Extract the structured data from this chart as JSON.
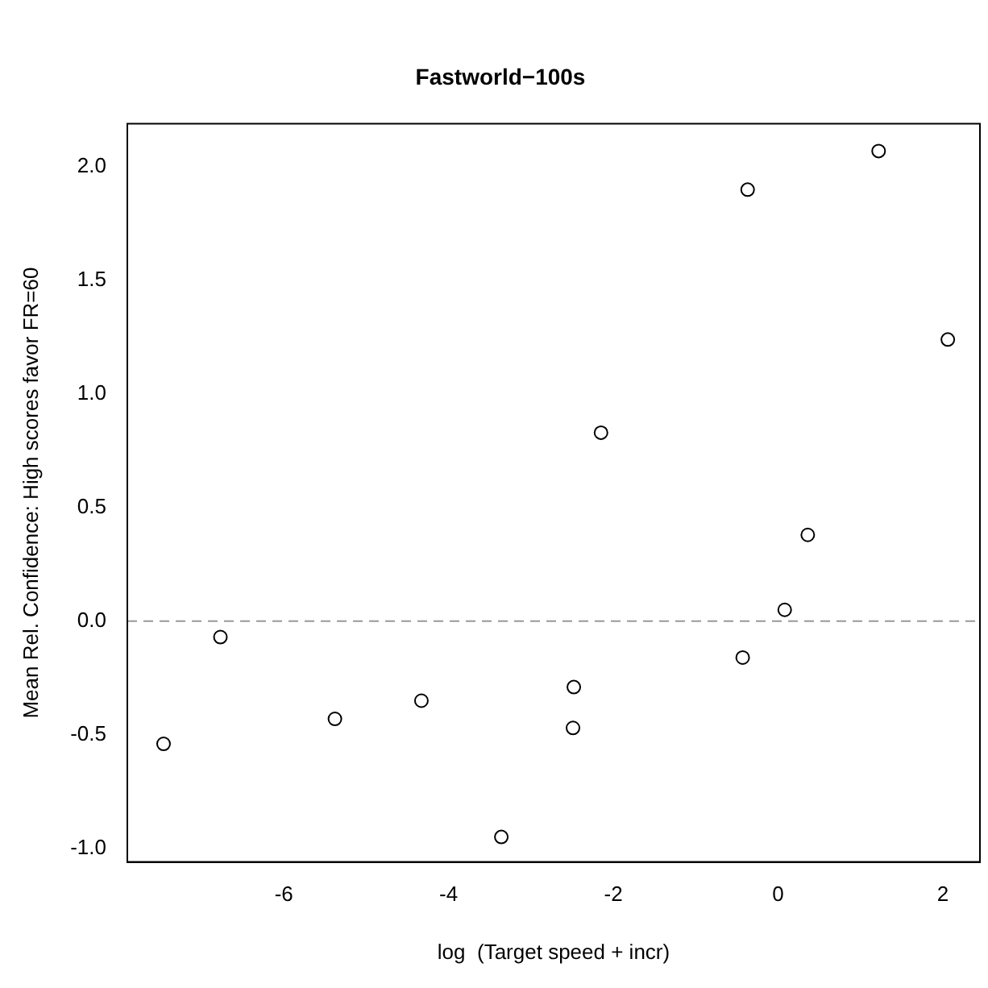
{
  "chart_data": {
    "type": "scatter",
    "title": "Fastworld−100s",
    "xlabel": "log  (Target speed + incr)",
    "ylabel": "Mean Rel. Confidence: High scores favor FR=60",
    "x": [
      -7.46,
      -6.77,
      -5.38,
      -4.33,
      -3.36,
      -2.48,
      -2.49,
      -2.15,
      -0.43,
      -0.37,
      0.08,
      0.36,
      1.22,
      2.06
    ],
    "values": [
      -0.54,
      -0.07,
      -0.43,
      -0.35,
      -0.95,
      -0.29,
      -0.47,
      0.83,
      -0.16,
      1.9,
      0.05,
      0.38,
      2.07,
      1.24
    ],
    "color": "#000000",
    "marker": "circle",
    "xlim": [
      -7.9,
      2.45
    ],
    "ylim": [
      -1.06,
      2.19
    ],
    "xticks": [
      -6,
      -4,
      -2,
      0,
      2
    ],
    "yticks": [
      {
        "value": -1,
        "label": "-1.0"
      },
      {
        "value": -0.5,
        "label": "-0.5"
      },
      {
        "value": 0,
        "label": "0.0"
      },
      {
        "value": 0.5,
        "label": "0.5"
      },
      {
        "value": 1,
        "label": "1.0"
      },
      {
        "value": 1.5,
        "label": "1.5"
      },
      {
        "value": 2,
        "label": "2.0"
      }
    ],
    "ref_lines": [
      {
        "axis": "y",
        "value": 0,
        "color": "#999999",
        "line_style": "dashed"
      }
    ],
    "grid": false,
    "legend": false
  }
}
